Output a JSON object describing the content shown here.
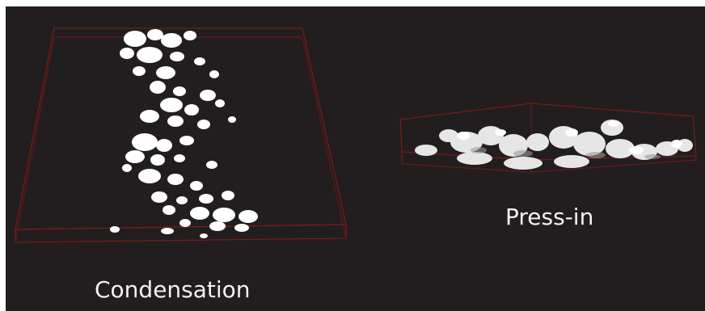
{
  "labels": {
    "left": "Condensation",
    "right": "Press-in"
  },
  "colors": {
    "background": "#221e1f",
    "outer_border": "#ffffff",
    "bounding_box": "#8b1a1a",
    "structure": "#ffffff",
    "text": "#f2f2f2"
  }
}
